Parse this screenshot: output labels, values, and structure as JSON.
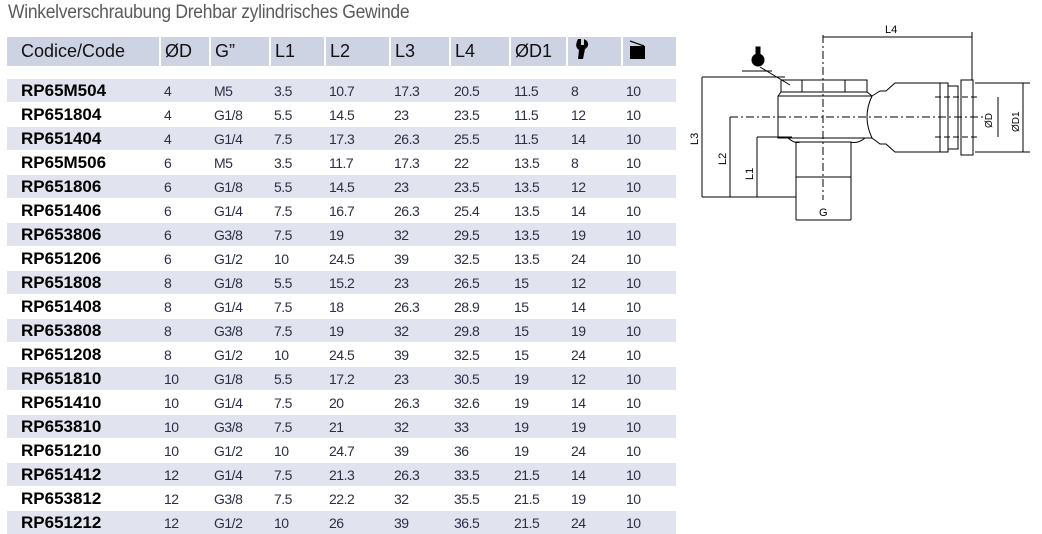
{
  "title": "Winkelverschraubung Drehbar zylindrisches Gewinde",
  "headers": [
    "Codice/Code",
    "ØD",
    "G”",
    "L1",
    "L2",
    "L3",
    "L4",
    "ØD1"
  ],
  "header_icons": [
    "wrench-icon",
    "package-box-icon"
  ],
  "rows": [
    [
      "RP65M504",
      "4",
      "M5",
      "3.5",
      "10.7",
      "17.3",
      "20.5",
      "11.5",
      "8",
      "10"
    ],
    [
      "RP651804",
      "4",
      "G1/8",
      "5.5",
      "14.5",
      "23",
      "23.5",
      "11.5",
      "12",
      "10"
    ],
    [
      "RP651404",
      "4",
      "G1/4",
      "7.5",
      "17.3",
      "26.3",
      "25.5",
      "11.5",
      "14",
      "10"
    ],
    [
      "RP65M506",
      "6",
      "M5",
      "3.5",
      "11.7",
      "17.3",
      "22",
      "13.5",
      "8",
      "10"
    ],
    [
      "RP651806",
      "6",
      "G1/8",
      "5.5",
      "14.5",
      "23",
      "23.5",
      "13.5",
      "12",
      "10"
    ],
    [
      "RP651406",
      "6",
      "G1/4",
      "7.5",
      "16.7",
      "26.3",
      "25.4",
      "13.5",
      "14",
      "10"
    ],
    [
      "RP653806",
      "6",
      "G3/8",
      "7.5",
      "19",
      "32",
      "29.5",
      "13.5",
      "19",
      "10"
    ],
    [
      "RP651206",
      "6",
      "G1/2",
      "10",
      "24.5",
      "39",
      "32.5",
      "13.5",
      "24",
      "10"
    ],
    [
      "RP651808",
      "8",
      "G1/8",
      "5.5",
      "15.2",
      "23",
      "26.5",
      "15",
      "12",
      "10"
    ],
    [
      "RP651408",
      "8",
      "G1/4",
      "7.5",
      "18",
      "26.3",
      "28.9",
      "15",
      "14",
      "10"
    ],
    [
      "RP653808",
      "8",
      "G3/8",
      "7.5",
      "19",
      "32",
      "29.8",
      "15",
      "19",
      "10"
    ],
    [
      "RP651208",
      "8",
      "G1/2",
      "10",
      "24.5",
      "39",
      "32.5",
      "15",
      "24",
      "10"
    ],
    [
      "RP651810",
      "10",
      "G1/8",
      "5.5",
      "17.2",
      "23",
      "30.5",
      "19",
      "12",
      "10"
    ],
    [
      "RP651410",
      "10",
      "G1/4",
      "7.5",
      "20",
      "26.3",
      "32.6",
      "19",
      "14",
      "10"
    ],
    [
      "RP653810",
      "10",
      "G3/8",
      "7.5",
      "21",
      "32",
      "33",
      "19",
      "19",
      "10"
    ],
    [
      "RP651210",
      "10",
      "G1/2",
      "10",
      "24.7",
      "39",
      "36",
      "19",
      "24",
      "10"
    ],
    [
      "RP651412",
      "12",
      "G1/4",
      "7.5",
      "21.3",
      "26.3",
      "33.5",
      "21.5",
      "14",
      "10"
    ],
    [
      "RP653812",
      "12",
      "G3/8",
      "7.5",
      "22.2",
      "32",
      "35.5",
      "21.5",
      "19",
      "10"
    ],
    [
      "RP651212",
      "12",
      "G1/2",
      "10",
      "26",
      "39",
      "36.5",
      "21.5",
      "24",
      "10"
    ]
  ],
  "diagram": {
    "labels": {
      "l4": "L4",
      "l3": "L3",
      "l2": "L2",
      "l1": "L1",
      "g": "G",
      "d": "ØD",
      "d1": "ØD1"
    }
  }
}
